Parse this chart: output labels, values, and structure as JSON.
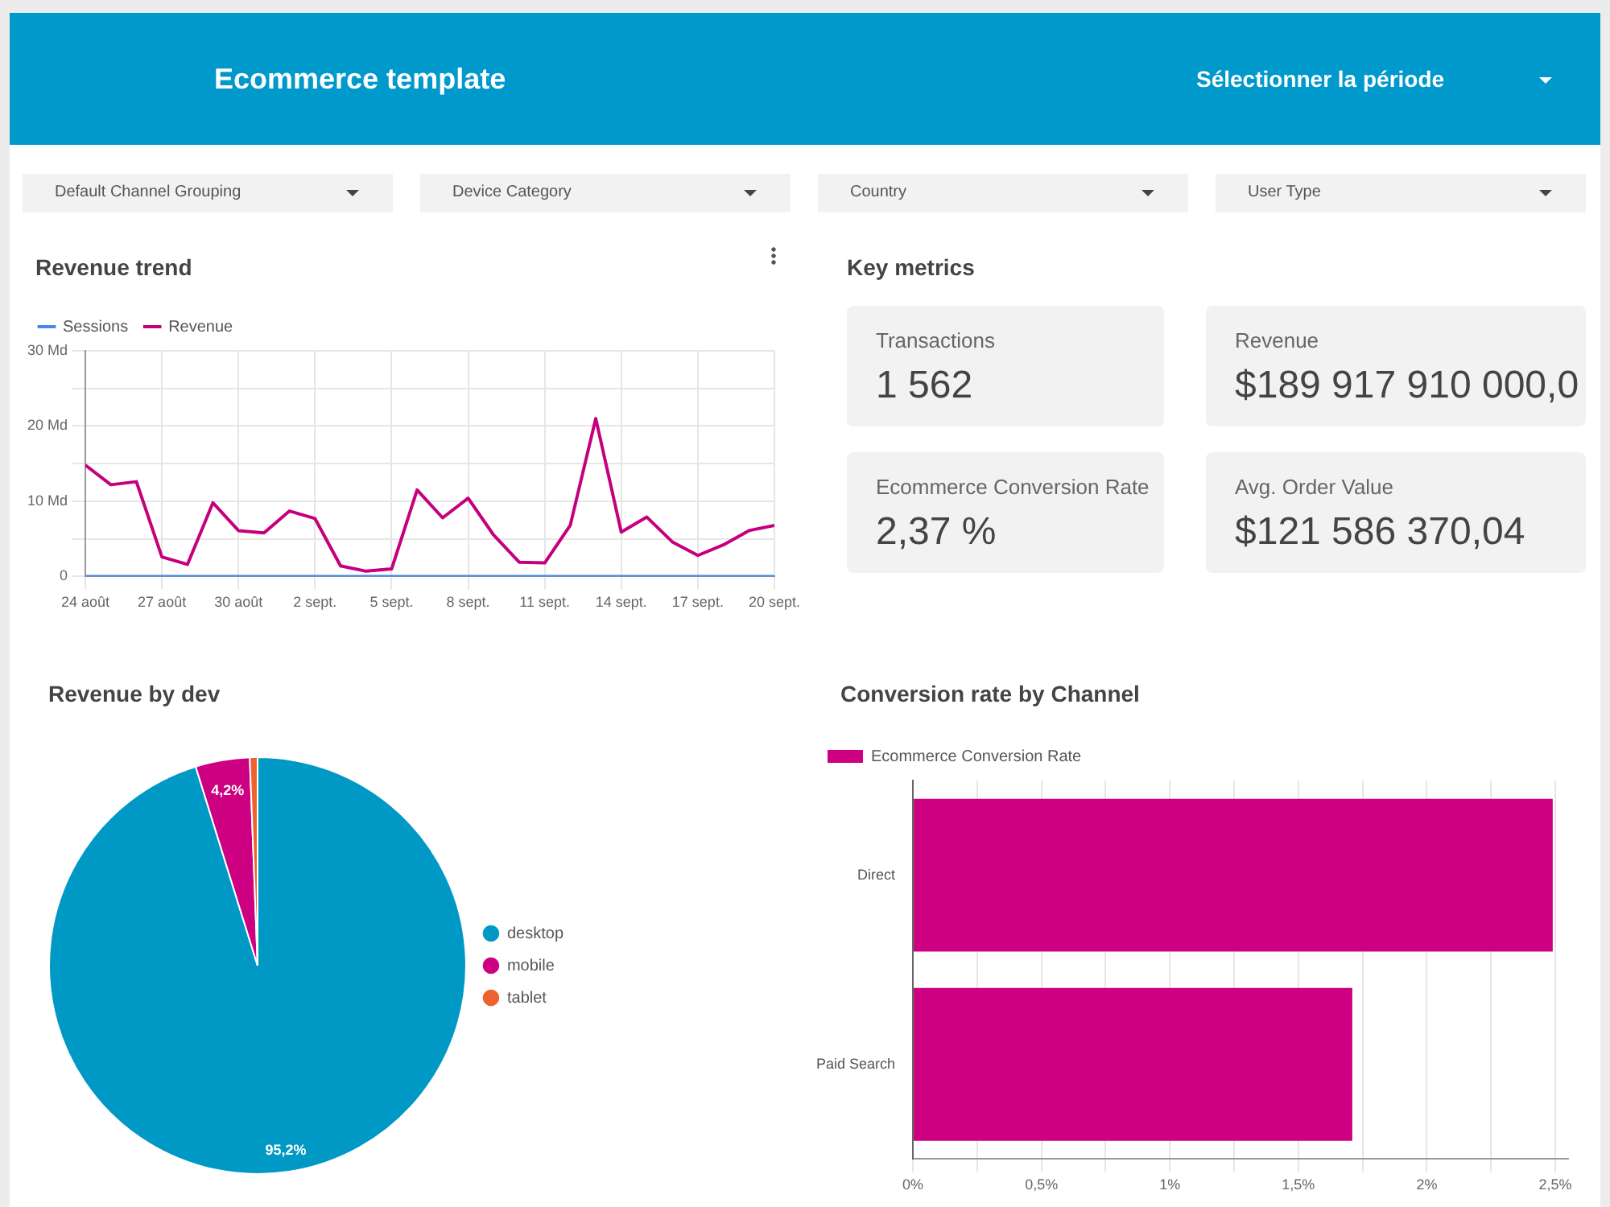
{
  "chart_data": [
    {
      "type": "other",
      "title": "Ecommerce template",
      "annotations": [
        "Sélectionner la période",
        "Default Channel Grouping",
        "Device Category",
        "Country",
        "User Type"
      ]
    },
    {
      "type": "line",
      "title": "Revenue trend",
      "x": [
        "--08-24",
        "--08-25",
        "--08-26",
        "--08-27",
        "--08-28",
        "--08-29",
        "--08-30",
        "--08-31",
        "--09-01",
        "--09-02",
        "--09-03",
        "--09-04",
        "--09-05",
        "--09-06",
        "--09-07",
        "--09-08",
        "--09-09",
        "--09-10",
        "--09-11",
        "--09-12",
        "--09-13",
        "--09-14",
        "--09-15",
        "--09-16",
        "--09-17",
        "--09-18",
        "--09-19",
        "--09-20"
      ],
      "series": [
        {
          "name": "Sessions",
          "color": "#4a86e8",
          "values": [
            0,
            0,
            0,
            0,
            0,
            0,
            0,
            0,
            0,
            0,
            0,
            0,
            0,
            0,
            0,
            0,
            0,
            0,
            0,
            0,
            0,
            0,
            0,
            0,
            0,
            0,
            0,
            0
          ]
        },
        {
          "name": "Revenue",
          "color": "#c5007c",
          "values": [
            14.8,
            12.2,
            12.6,
            2.6,
            1.6,
            9.8,
            6.1,
            5.8,
            8.7,
            7.7,
            1.4,
            0.7,
            1.0,
            11.5,
            7.8,
            10.4,
            5.5,
            1.9,
            1.8,
            6.8,
            21.0,
            5.9,
            7.9,
            4.6,
            2.8,
            4.2,
            6.1,
            6.8
          ]
        }
      ],
      "xlim": [
        "--08-24",
        "--09-20"
      ],
      "xticks": [
        {
          "value": "--08-24",
          "label": "24 août"
        },
        {
          "value": "--08-27",
          "label": "27 août"
        },
        {
          "value": "--08-30",
          "label": "30 août"
        },
        {
          "value": "--09-02",
          "label": "2 sept."
        },
        {
          "value": "--09-05",
          "label": "5 sept."
        },
        {
          "value": "--09-08",
          "label": "8 sept."
        },
        {
          "value": "--09-11",
          "label": "11 sept."
        },
        {
          "value": "--09-14",
          "label": "14 sept."
        },
        {
          "value": "--09-17",
          "label": "17 sept."
        },
        {
          "value": "--09-20",
          "label": "20 sept."
        }
      ],
      "ylim": [
        0,
        30
      ],
      "yticks": [
        0,
        {
          "value": 5,
          "label": null
        },
        {
          "value": 10,
          "label": "10 Md"
        },
        {
          "value": 15,
          "label": null
        },
        {
          "value": 20,
          "label": "20 Md"
        },
        {
          "value": 25,
          "label": null
        },
        {
          "value": 30,
          "label": "30 Md"
        }
      ],
      "grid": true,
      "legend": "top left",
      "marker": "none"
    },
    {
      "type": "other",
      "title": "Key metrics",
      "annotations": [
        "Transactions",
        "1 562",
        "Revenue",
        "$189 917 910 000,0",
        "Ecommerce Conversion Rate",
        "2,37 %",
        "Avg. Order Value",
        "$121 586 370,04"
      ]
    },
    {
      "type": "pie",
      "title": "Revenue by dev",
      "categories": [
        "desktop",
        "mobile",
        "tablet"
      ],
      "values": [
        95.2,
        4.2,
        0.6
      ],
      "colors": [
        "#0099c6",
        "#cc0080",
        "#f0622d"
      ],
      "value_labels": [
        "95,2%",
        "4,2%",
        null
      ],
      "legend": "right"
    },
    {
      "type": "bar",
      "title": "Conversion rate by Channel",
      "orientation": "horizontal",
      "categories": [
        "Direct",
        "Paid Search"
      ],
      "series": [
        {
          "name": "Ecommerce Conversion Rate",
          "color": "#cc0080",
          "values": [
            2.49,
            1.71
          ]
        }
      ],
      "xlim": [
        0,
        2.55
      ],
      "xticks": [
        {
          "value": 0,
          "label": "0%"
        },
        {
          "value": 0.25,
          "label": null
        },
        {
          "value": 0.5,
          "label": "0,5%"
        },
        {
          "value": 0.75,
          "label": null
        },
        {
          "value": 1,
          "label": "1%"
        },
        {
          "value": 1.25,
          "label": null
        },
        {
          "value": 1.5,
          "label": "1,5%"
        },
        {
          "value": 1.75,
          "label": null
        },
        {
          "value": 2,
          "label": "2%"
        },
        {
          "value": 2.25,
          "label": null
        },
        {
          "value": 2.5,
          "label": "2,5%"
        }
      ],
      "grid": "x",
      "legend": "top left"
    }
  ]
}
